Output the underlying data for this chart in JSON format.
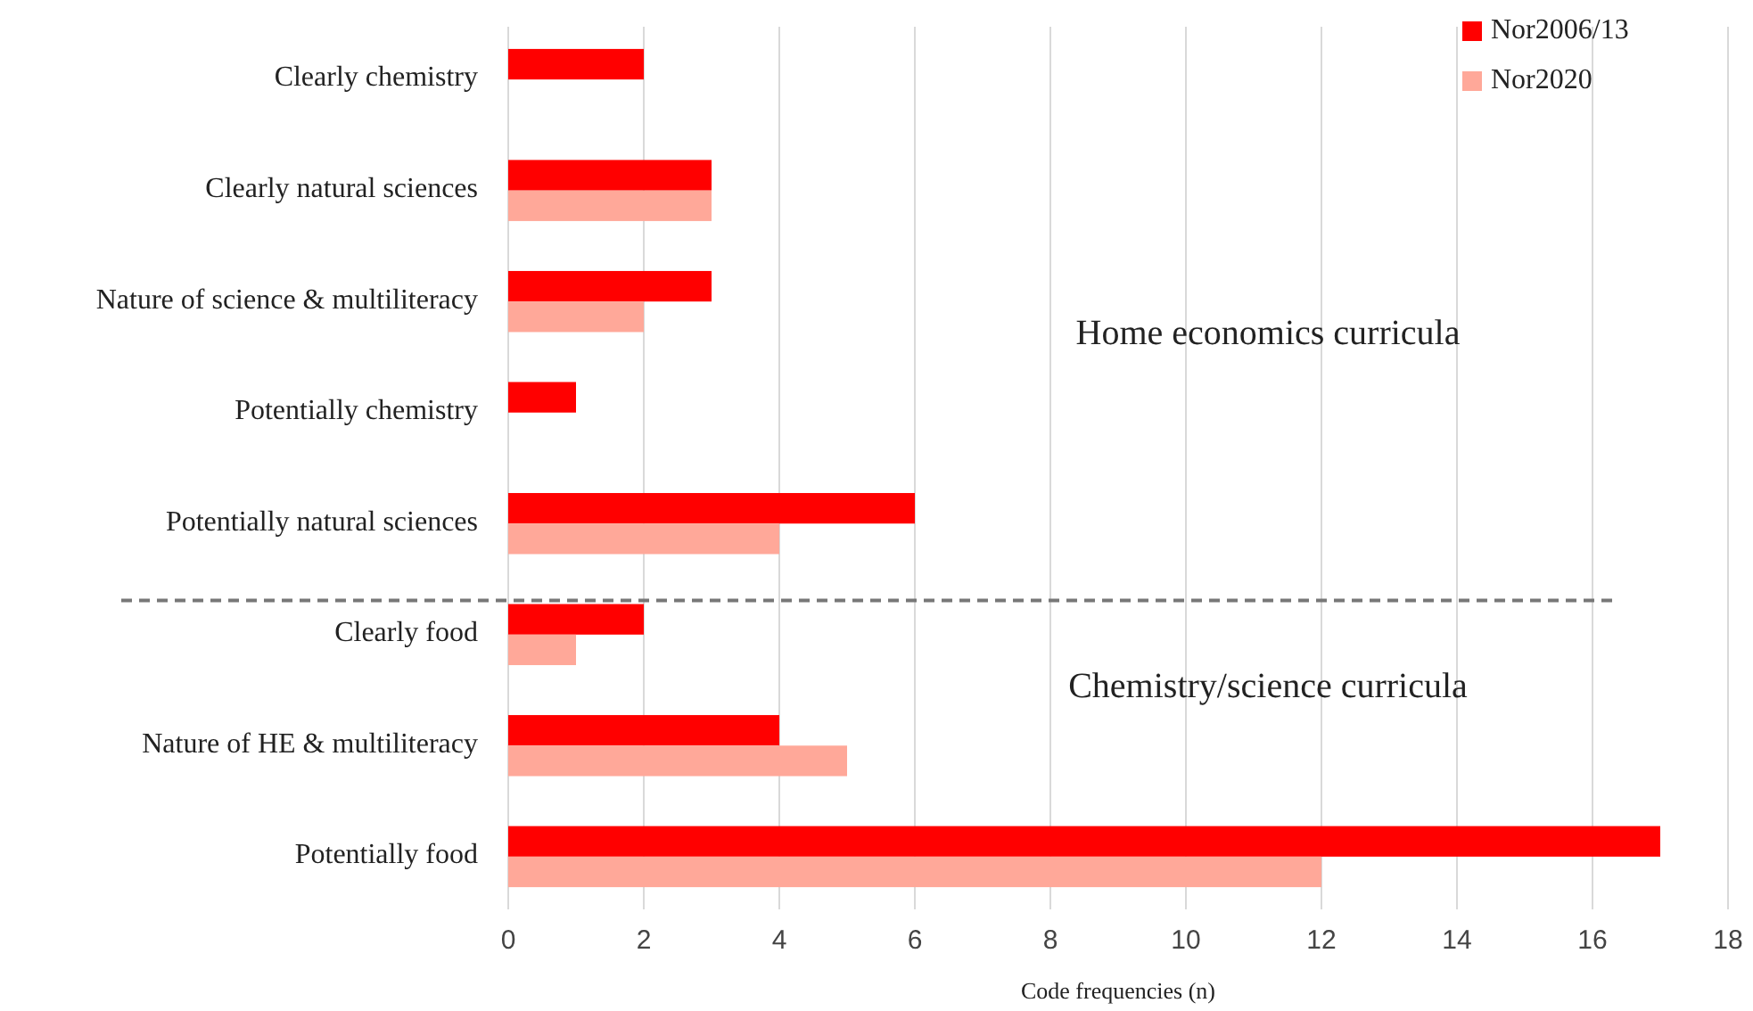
{
  "chart_data": {
    "type": "bar",
    "orientation": "horizontal",
    "xlabel": "Code frequencies (n)",
    "categories": [
      "Clearly chemistry",
      "Clearly natural sciences",
      "Nature of science & multiliteracy",
      "Potentially chemistry",
      "Potentially natural sciences",
      "Clearly food",
      "Nature of HE & multiliteracy",
      "Potentially food"
    ],
    "series": [
      {
        "name": "Nor2006/13",
        "color": "#ff0000",
        "values": [
          2,
          3,
          3,
          1,
          6,
          2,
          4,
          17
        ]
      },
      {
        "name": "Nor2020",
        "color": "#ffa899",
        "values": [
          null,
          3,
          2,
          null,
          4,
          1,
          5,
          12
        ]
      }
    ],
    "xlim": [
      0,
      18
    ],
    "xticks": [
      0,
      2,
      4,
      6,
      8,
      10,
      12,
      14,
      16,
      18
    ],
    "grid": "x",
    "legend": "top right",
    "ref_lines": [
      {
        "axis": "y",
        "value": "Clearly food",
        "color": "#777777",
        "line_style": "dashed"
      }
    ],
    "annotations": [
      "Home economics curricula",
      "Chemistry/science curricula"
    ]
  }
}
